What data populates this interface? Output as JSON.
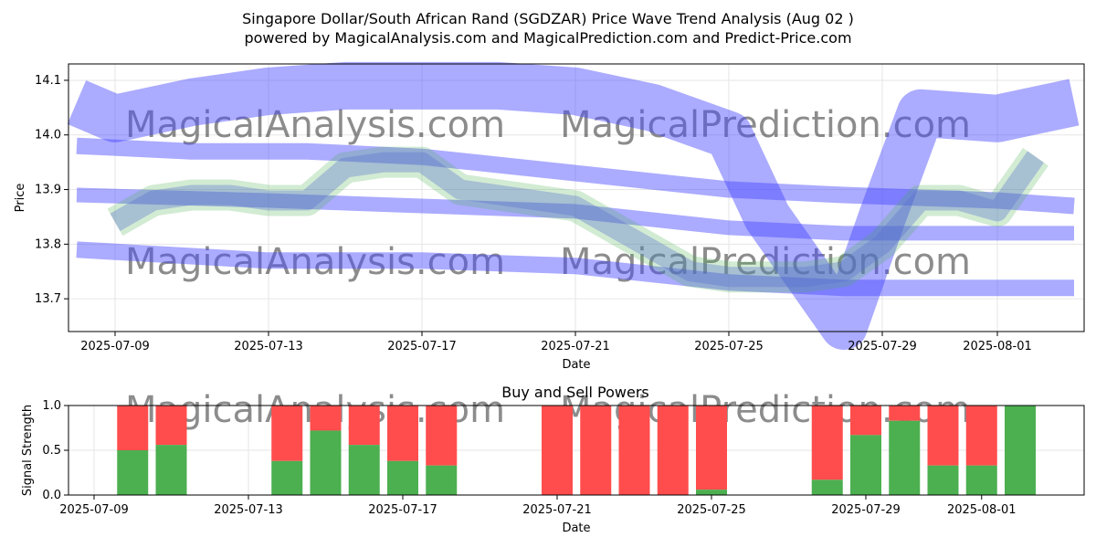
{
  "title_line1": "Singapore Dollar/South African Rand (SGDZAR) Price Wave Trend Analysis (Aug 02 )",
  "title_line2": "powered by MagicalAnalysis.com and MagicalPrediction.com and Predict-Price.com",
  "watermarks": [
    "MagicalAnalysis.com",
    "MagicalPrediction.com"
  ],
  "chart_data": [
    {
      "type": "line",
      "title": "",
      "xlabel": "Date",
      "ylabel": "Price",
      "ylim": [
        13.64,
        14.13
      ],
      "yticks": [
        13.7,
        13.8,
        13.9,
        14.0,
        14.1
      ],
      "xticks": [
        "2025-07-09",
        "2025-07-13",
        "2025-07-17",
        "2025-07-21",
        "2025-07-25",
        "2025-07-29",
        "2025-08-01"
      ],
      "grid": true,
      "colors": {
        "blue_band": "#4444ff",
        "green_band": "#4caf50",
        "blue_alpha": 0.45
      },
      "series": [
        {
          "role": "upper-wave-band",
          "x": [
            "2025-07-08",
            "2025-07-09",
            "2025-07-11",
            "2025-07-13",
            "2025-07-15",
            "2025-07-17",
            "2025-07-19",
            "2025-07-21",
            "2025-07-23",
            "2025-07-25",
            "2025-07-26",
            "2025-07-28",
            "2025-07-29",
            "2025-07-30",
            "2025-08-01",
            "2025-08-03"
          ],
          "y": [
            14.06,
            14.03,
            14.06,
            14.08,
            14.09,
            14.09,
            14.09,
            14.08,
            14.05,
            14.0,
            13.85,
            13.65,
            13.85,
            14.04,
            14.03,
            14.06
          ]
        },
        {
          "role": "mid-wave-band",
          "x": [
            "2025-07-08",
            "2025-07-11",
            "2025-07-14",
            "2025-07-17",
            "2025-07-21",
            "2025-07-25",
            "2025-07-28",
            "2025-08-01",
            "2025-08-03"
          ],
          "y": [
            13.98,
            13.97,
            13.97,
            13.96,
            13.93,
            13.9,
            13.89,
            13.88,
            13.87
          ]
        },
        {
          "role": "center-wave-band",
          "x": [
            "2025-07-08",
            "2025-07-13",
            "2025-07-17",
            "2025-07-21",
            "2025-07-25",
            "2025-07-28",
            "2025-08-01",
            "2025-08-03"
          ],
          "y": [
            13.89,
            13.88,
            13.87,
            13.86,
            13.83,
            13.82,
            13.82,
            13.82
          ]
        },
        {
          "role": "lower-wave-band",
          "x": [
            "2025-07-08",
            "2025-07-13",
            "2025-07-17",
            "2025-07-21",
            "2025-07-25",
            "2025-07-28",
            "2025-08-01",
            "2025-08-03"
          ],
          "y": [
            13.79,
            13.77,
            13.77,
            13.76,
            13.73,
            13.72,
            13.72,
            13.72
          ]
        },
        {
          "role": "price-path",
          "x": [
            "2025-07-09",
            "2025-07-10",
            "2025-07-11",
            "2025-07-12",
            "2025-07-13",
            "2025-07-14",
            "2025-07-15",
            "2025-07-16",
            "2025-07-17",
            "2025-07-18",
            "2025-07-19",
            "2025-07-20",
            "2025-07-21",
            "2025-07-22",
            "2025-07-23",
            "2025-07-24",
            "2025-07-25",
            "2025-07-26",
            "2025-07-27",
            "2025-07-28",
            "2025-07-29",
            "2025-07-30",
            "2025-07-31",
            "2025-08-01",
            "2025-08-02"
          ],
          "y": [
            13.84,
            13.88,
            13.89,
            13.89,
            13.88,
            13.88,
            13.94,
            13.95,
            13.95,
            13.9,
            13.89,
            13.88,
            13.87,
            13.83,
            13.79,
            13.75,
            13.74,
            13.74,
            13.74,
            13.75,
            13.8,
            13.88,
            13.88,
            13.86,
            13.96
          ]
        }
      ]
    },
    {
      "type": "bar",
      "title": "Buy and Sell Powers",
      "xlabel": "Date",
      "ylabel": "Signal Strength",
      "ylim": [
        0,
        1.0
      ],
      "yticks": [
        0.0,
        0.5,
        1.0
      ],
      "xticks": [
        "2025-07-09",
        "2025-07-13",
        "2025-07-17",
        "2025-07-21",
        "2025-07-25",
        "2025-07-29",
        "2025-08-01"
      ],
      "grid": true,
      "colors": {
        "buy": "#4caf50",
        "sell": "#ff4d4d"
      },
      "series": [
        {
          "name": "Buy",
          "values": [
            0.5,
            0.56,
            0.38,
            0.72,
            0.56,
            0.38,
            0.33,
            0.0,
            0.0,
            0.0,
            0.0,
            0.06,
            0.17,
            0.67,
            0.83,
            0.33,
            0.33,
            1.0
          ]
        }
      ],
      "categories": [
        "2025-07-10",
        "2025-07-11",
        "2025-07-14",
        "2025-07-15",
        "2025-07-16",
        "2025-07-17",
        "2025-07-18",
        "2025-07-21",
        "2025-07-22",
        "2025-07-23",
        "2025-07-24",
        "2025-07-25",
        "2025-07-28",
        "2025-07-29",
        "2025-07-30",
        "2025-07-31",
        "2025-08-01",
        "2025-08-02"
      ]
    }
  ]
}
